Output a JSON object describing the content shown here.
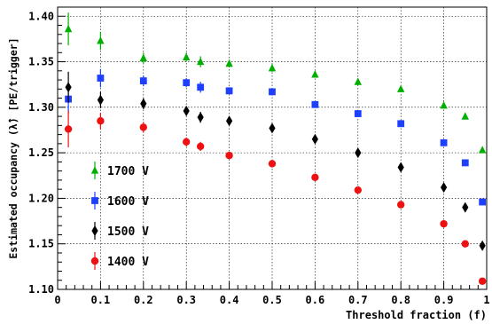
{
  "chart_data": {
    "type": "scatter",
    "title": "",
    "xlabel": "Threshold fraction (f)",
    "ylabel": "Estimated occupancy (λ̂) [PE/trigger]",
    "xlim": [
      0,
      1
    ],
    "ylim": [
      1.1,
      1.41
    ],
    "grid": true,
    "legend_position": "bottom-left",
    "x_ticks": [
      "0",
      "0.1",
      "0.2",
      "0.3",
      "0.4",
      "0.5",
      "0.6",
      "0.7",
      "0.8",
      "0.9",
      "1"
    ],
    "y_ticks": [
      "1.10",
      "1.15",
      "1.20",
      "1.25",
      "1.30",
      "1.35",
      "1.40"
    ],
    "x": [
      0.025,
      0.1,
      0.2,
      0.3,
      0.333,
      0.4,
      0.5,
      0.6,
      0.7,
      0.8,
      0.9,
      0.95,
      0.99
    ],
    "series": [
      {
        "name": "1700 V",
        "color": "#00b000",
        "marker": "triangle",
        "values": [
          1.386,
          1.373,
          1.354,
          1.355,
          1.35,
          1.348,
          1.343,
          1.336,
          1.328,
          1.32,
          1.302,
          1.29,
          1.253
        ],
        "errors": [
          0.018,
          0.01,
          0.006,
          0.005,
          0.006,
          0.004,
          0.004,
          0.003,
          0.003,
          0.003,
          0.003,
          0.003,
          0.003
        ]
      },
      {
        "name": "1600 V",
        "color": "#1f3fff",
        "marker": "square",
        "values": [
          1.309,
          1.332,
          1.329,
          1.327,
          1.322,
          1.318,
          1.317,
          1.303,
          1.293,
          1.282,
          1.261,
          1.239,
          1.196
        ],
        "errors": [
          0.016,
          0.01,
          0.006,
          0.005,
          0.006,
          0.004,
          0.004,
          0.003,
          0.003,
          0.003,
          0.003,
          0.003,
          0.003
        ]
      },
      {
        "name": "1500 V",
        "color": "#000000",
        "marker": "diamond",
        "values": [
          1.322,
          1.308,
          1.304,
          1.296,
          1.289,
          1.285,
          1.277,
          1.265,
          1.25,
          1.234,
          1.212,
          1.19,
          1.148
        ],
        "errors": [
          0.017,
          0.009,
          0.006,
          0.005,
          0.006,
          0.004,
          0.004,
          0.003,
          0.003,
          0.003,
          0.003,
          0.003,
          0.003
        ]
      },
      {
        "name": "1400 V",
        "color": "#ee1111",
        "marker": "circle",
        "values": [
          1.276,
          1.285,
          1.278,
          1.262,
          1.257,
          1.247,
          1.238,
          1.223,
          1.209,
          1.193,
          1.172,
          1.15,
          1.109
        ],
        "errors": [
          0.02,
          0.009,
          0.006,
          0.005,
          0.005,
          0.004,
          0.004,
          0.003,
          0.003,
          0.003,
          0.003,
          0.003,
          0.003
        ]
      }
    ]
  }
}
